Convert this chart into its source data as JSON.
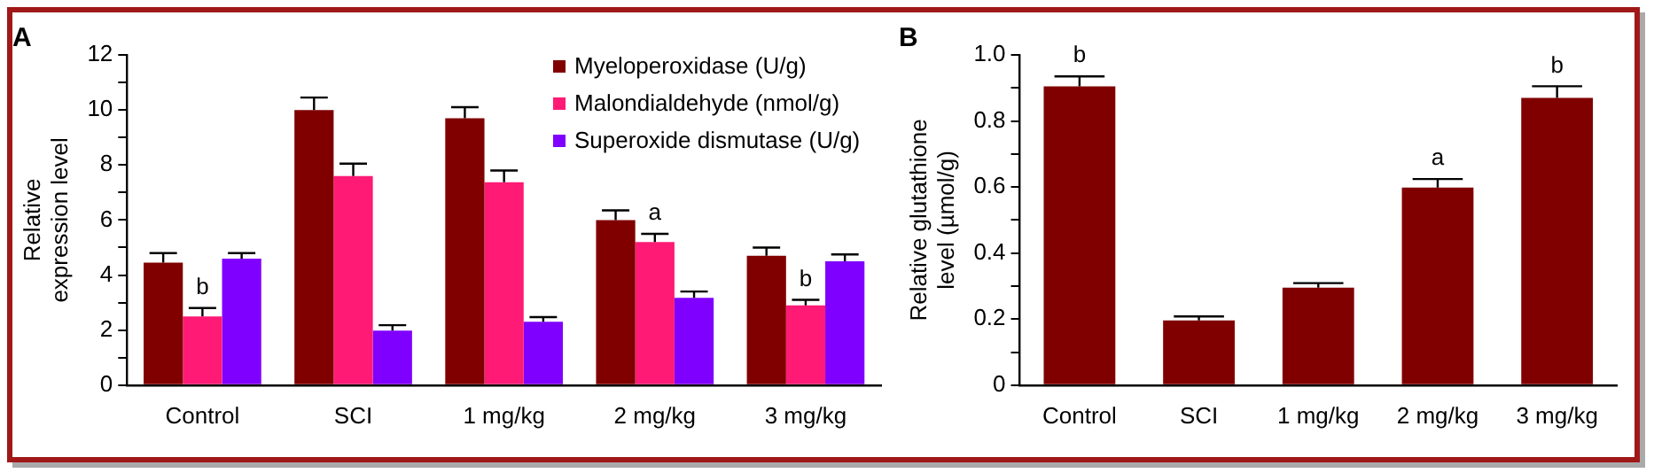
{
  "chart_data": [
    {
      "type": "bar",
      "title": "A",
      "ylabel": "Relative expression level",
      "categories": [
        "Control",
        "SCI",
        "1 mg/kg",
        "2 mg/kg",
        "3 mg/kg"
      ],
      "series": [
        {
          "name": "Myeloperoxidase (U/g)",
          "color": "#800000",
          "values": [
            4.45,
            10.0,
            9.7,
            6.0,
            4.7
          ],
          "errors": [
            [
              4.45,
              4.8
            ],
            [
              10.0,
              10.45
            ],
            [
              9.7,
              10.1
            ],
            [
              6.0,
              6.35
            ],
            [
              4.7,
              5.0
            ]
          ]
        },
        {
          "name": "Malondialdehyde (nmol/g)",
          "color": "#ff1a75",
          "values": [
            2.5,
            7.6,
            7.37,
            5.2,
            2.9
          ],
          "errors": [
            [
              2.5,
              2.8
            ],
            [
              7.6,
              8.05
            ],
            [
              7.37,
              7.8
            ],
            [
              5.2,
              5.5
            ],
            [
              2.9,
              3.1
            ]
          ]
        },
        {
          "name": "Superoxide dismutase (U/g)",
          "color": "#8000ff",
          "values": [
            4.6,
            1.98,
            2.3,
            3.17,
            4.5
          ],
          "errors": [
            [
              4.6,
              4.8
            ],
            [
              1.98,
              2.18
            ],
            [
              2.3,
              2.47
            ],
            [
              3.17,
              3.4
            ],
            [
              4.5,
              4.75
            ]
          ]
        }
      ],
      "ylim": [
        0,
        12
      ],
      "yticks": [
        0,
        {
          "value": 1,
          "label": null
        },
        2,
        {
          "value": 3,
          "label": null
        },
        4,
        {
          "value": 5,
          "label": null
        },
        6,
        {
          "value": 7,
          "label": null
        },
        8,
        {
          "value": 9,
          "label": null
        },
        10,
        {
          "value": 11,
          "label": null
        },
        12
      ],
      "annotations": [
        {
          "text": "b",
          "x": "Control",
          "y": 2.8
        },
        {
          "text": "a",
          "x": "2 mg/kg",
          "y": 5.5
        },
        {
          "text": "b",
          "x": "3 mg/kg",
          "y": 3.1
        }
      ],
      "legend": "top right",
      "grid": false
    },
    {
      "type": "bar",
      "title": "B",
      "ylabel": "Relative glutathione level (µmol/g)",
      "categories": [
        "Control",
        "SCI",
        "1 mg/kg",
        "2 mg/kg",
        "3 mg/kg"
      ],
      "series": [
        {
          "color": "#800000",
          "values": [
            0.905,
            0.196,
            0.295,
            0.598,
            0.87
          ],
          "errors": [
            [
              0.905,
              0.935
            ],
            [
              0.196,
              0.208
            ],
            [
              0.295,
              0.309
            ],
            [
              0.598,
              0.624
            ],
            [
              0.87,
              0.905
            ]
          ]
        }
      ],
      "ylim": [
        0,
        1.0
      ],
      "yticks": [
        0,
        {
          "value": 0.1,
          "label": null
        },
        {
          "value": 0.2,
          "label": "0.2"
        },
        {
          "value": 0.3,
          "label": null
        },
        {
          "value": 0.4,
          "label": "0.4"
        },
        {
          "value": 0.5,
          "label": null
        },
        {
          "value": 0.6,
          "label": "0.6"
        },
        {
          "value": 0.7,
          "label": null
        },
        {
          "value": 0.8,
          "label": "0.8"
        },
        {
          "value": 0.9,
          "label": null
        },
        {
          "value": 1.0,
          "label": "1.0"
        }
      ],
      "annotations": [
        {
          "text": "b",
          "x": "Control",
          "y": 0.935
        },
        {
          "text": "a",
          "x": "2 mg/kg",
          "y": 0.624
        },
        {
          "text": "b",
          "x": "3 mg/kg",
          "y": 0.905
        }
      ],
      "grid": false
    }
  ]
}
